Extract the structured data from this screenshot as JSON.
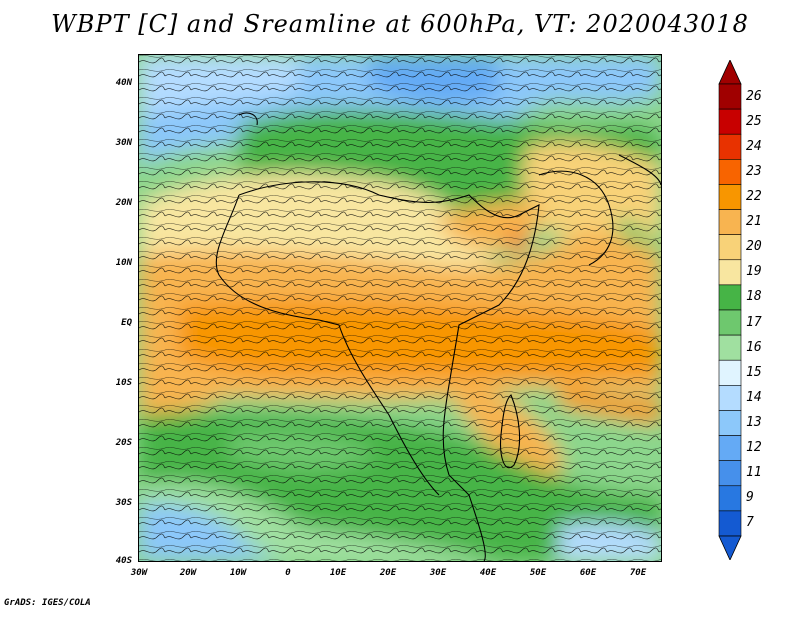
{
  "title": "WBPT [C] and Sreamline at 600hPa, VT: 2020043018",
  "credit": "GrADS: IGES/COLA",
  "map": {
    "variable": "Wet-bulb potential temperature",
    "units": "C",
    "level": "600hPa",
    "valid_time": "2020043018",
    "lon_range": [
      -30,
      75
    ],
    "lat_range": [
      -40,
      45
    ],
    "lat_ticks": [
      "40N",
      "30N",
      "20N",
      "10N",
      "EQ",
      "10S",
      "20S",
      "30S",
      "40S"
    ],
    "lat_values": [
      40,
      30,
      20,
      10,
      0,
      -10,
      -20,
      -30,
      -40
    ],
    "lon_ticks": [
      "30W",
      "20W",
      "10W",
      "0",
      "10E",
      "20E",
      "30E",
      "40E",
      "50E",
      "60E",
      "70E"
    ],
    "lon_values": [
      -30,
      -20,
      -10,
      0,
      10,
      20,
      30,
      40,
      50,
      60,
      70
    ]
  },
  "colorbar": {
    "labels": [
      "26",
      "25",
      "24",
      "23",
      "22",
      "21",
      "20",
      "19",
      "18",
      "17",
      "16",
      "15",
      "14",
      "13",
      "12",
      "11",
      "9",
      "7"
    ],
    "colors": [
      "#a00000",
      "#c80000",
      "#e83200",
      "#f86400",
      "#f89600",
      "#f8b450",
      "#f8d278",
      "#f8e6a0",
      "#46b446",
      "#6ec86e",
      "#a0e0a0",
      "#e0f4ff",
      "#b4dcff",
      "#8cc8fa",
      "#64aaf5",
      "#4690eb",
      "#2878e1",
      "#145ad2"
    ],
    "extend": "both"
  }
}
